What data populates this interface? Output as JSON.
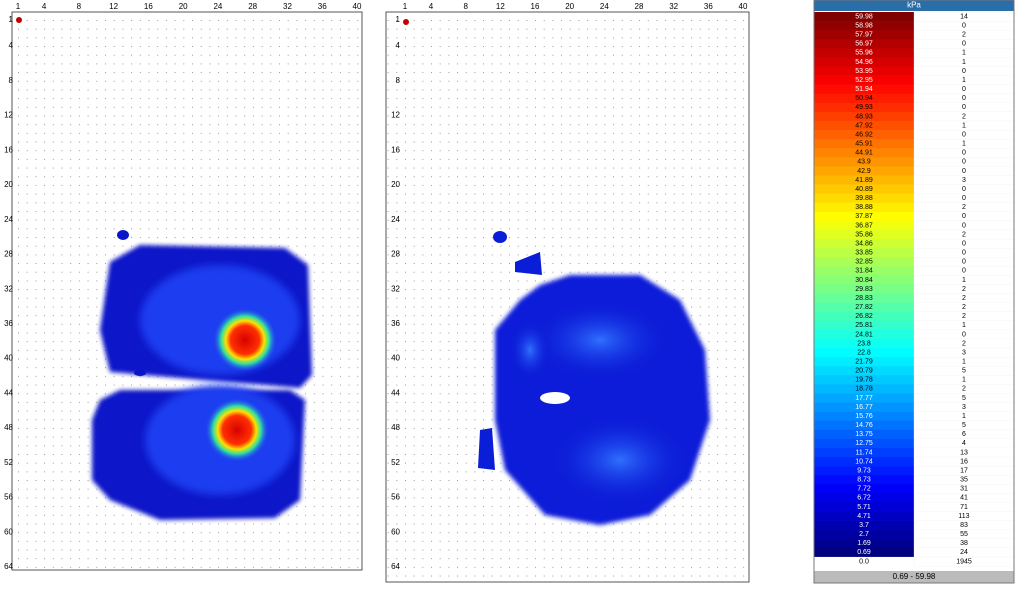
{
  "left_map": {
    "x_ticks": [
      1,
      4,
      8,
      12,
      16,
      20,
      24,
      28,
      32,
      36,
      40
    ],
    "y_ticks": [
      1,
      4,
      8,
      12,
      16,
      20,
      24,
      28,
      32,
      36,
      40,
      44,
      48,
      52,
      56,
      60,
      64
    ]
  },
  "right_map": {
    "x_ticks": [
      1,
      4,
      8,
      12,
      16,
      20,
      24,
      28,
      32,
      36,
      40
    ],
    "y_ticks": [
      1,
      4,
      8,
      12,
      16,
      20,
      24,
      28,
      32,
      36,
      40,
      44,
      48,
      52,
      56,
      60,
      64
    ]
  },
  "legend": {
    "header": "kPa",
    "rows": [
      [
        "59.98",
        14
      ],
      [
        "58.98",
        0
      ],
      [
        "57.97",
        2
      ],
      [
        "56.97",
        0
      ],
      [
        "55.96",
        1
      ],
      [
        "54.96",
        1
      ],
      [
        "53.95",
        0
      ],
      [
        "52.95",
        1
      ],
      [
        "51.94",
        0
      ],
      [
        "50.94",
        0
      ],
      [
        "49.93",
        0
      ],
      [
        "48.93",
        2
      ],
      [
        "47.92",
        1
      ],
      [
        "46.92",
        0
      ],
      [
        "45.91",
        1
      ],
      [
        "44.91",
        0
      ],
      [
        "43.9",
        0
      ],
      [
        "42.9",
        0
      ],
      [
        "41.89",
        3
      ],
      [
        "40.89",
        0
      ],
      [
        "39.88",
        0
      ],
      [
        "38.88",
        2
      ],
      [
        "37.87",
        0
      ],
      [
        "36.87",
        0
      ],
      [
        "35.86",
        2
      ],
      [
        "34.86",
        0
      ],
      [
        "33.85",
        0
      ],
      [
        "32.85",
        0
      ],
      [
        "31.84",
        0
      ],
      [
        "30.84",
        1
      ],
      [
        "29.83",
        2
      ],
      [
        "28.83",
        2
      ],
      [
        "27.82",
        2
      ],
      [
        "26.82",
        2
      ],
      [
        "25.81",
        1
      ],
      [
        "24.81",
        0
      ],
      [
        "23.8",
        2
      ],
      [
        "22.8",
        3
      ],
      [
        "21.79",
        1
      ],
      [
        "20.79",
        5
      ],
      [
        "19.78",
        1
      ],
      [
        "18.78",
        2
      ],
      [
        "17.77",
        5
      ],
      [
        "16.77",
        3
      ],
      [
        "15.76",
        1
      ],
      [
        "14.76",
        5
      ],
      [
        "13.75",
        6
      ],
      [
        "12.75",
        4
      ],
      [
        "11.74",
        13
      ],
      [
        "10.74",
        16
      ],
      [
        "9.73",
        17
      ],
      [
        "8.73",
        35
      ],
      [
        "7.72",
        31
      ],
      [
        "6.72",
        41
      ],
      [
        "5.71",
        71
      ],
      [
        "4.71",
        113
      ],
      [
        "3.7",
        83
      ],
      [
        "2.7",
        55
      ],
      [
        "1.69",
        38
      ],
      [
        "0.69",
        24
      ],
      [
        "0.0",
        1945
      ]
    ],
    "footer": "0.69 - 59.98"
  }
}
